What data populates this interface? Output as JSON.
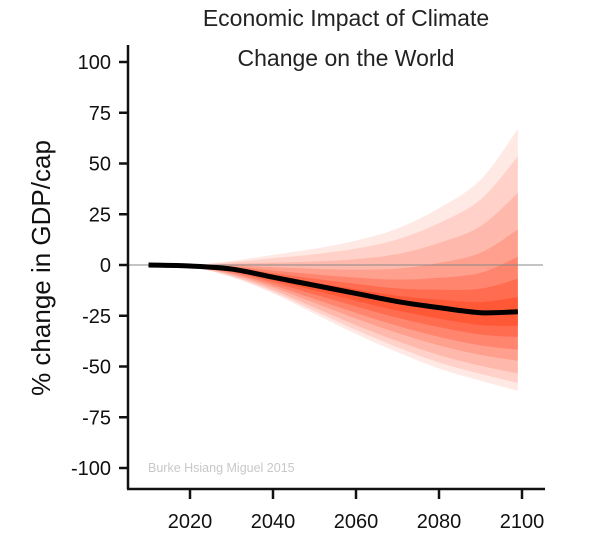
{
  "chart_data": {
    "type": "area",
    "title": [
      "Economic Impact of Climate",
      "Change on the World"
    ],
    "xlabel": "",
    "ylabel": "% change in GDP/cap",
    "xlim": [
      2005,
      2105
    ],
    "ylim": [
      -108,
      108
    ],
    "x_ticks": [
      2020,
      2040,
      2060,
      2080,
      2100
    ],
    "x_tick_labels": [
      "2020",
      "2040",
      "2060",
      "2080",
      "2100"
    ],
    "y_ticks": [
      100,
      75,
      50,
      25,
      0,
      -25,
      -50,
      -75,
      -100
    ],
    "y_tick_labels": [
      "100",
      "75",
      "50",
      "25",
      "0",
      "-25",
      "-50",
      "-75",
      "-100"
    ],
    "grid": false,
    "zero_line": true,
    "annotation": "Burke Hsiang Miguel 2015",
    "x": [
      2010,
      2020,
      2030,
      2040,
      2050,
      2060,
      2070,
      2080,
      2090,
      2099
    ],
    "median": [
      0,
      -0.5,
      -2,
      -6,
      -10,
      -14,
      -18,
      -21,
      -23.5,
      -23
    ],
    "upper_bound": [
      0,
      0,
      2,
      5,
      8,
      12,
      18,
      28,
      42,
      67
    ],
    "lower_bound": [
      0,
      -1,
      -6,
      -14,
      -24,
      -34,
      -43,
      -51,
      -57,
      -62
    ],
    "colors": {
      "band": "#ff2a00",
      "median": "#000000",
      "zero_line": "#888888"
    }
  }
}
